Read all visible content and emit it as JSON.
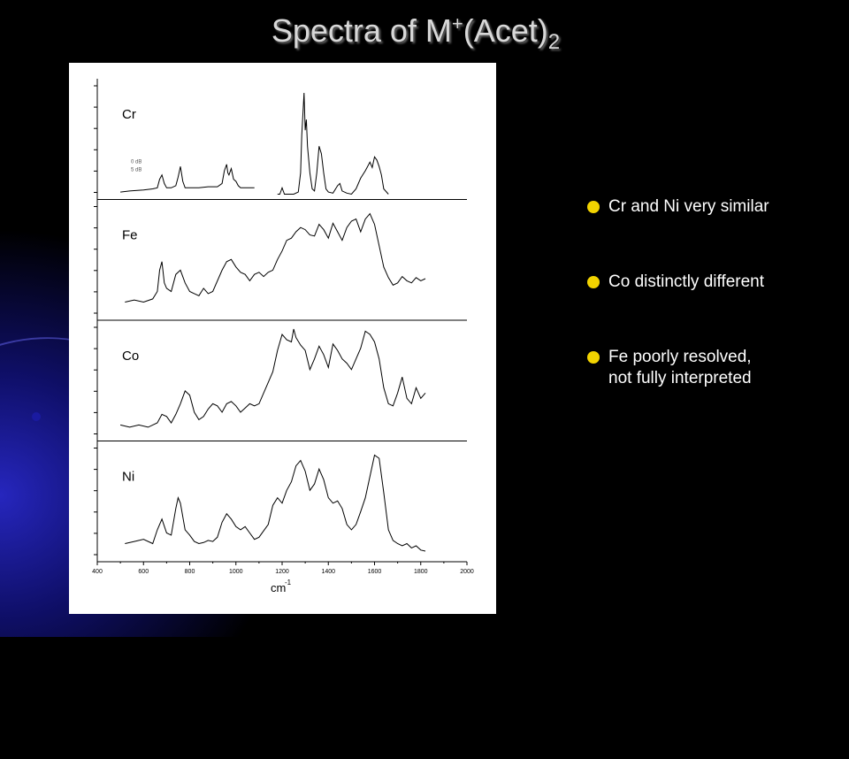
{
  "slide": {
    "title_main": "Spectra of M",
    "title_sup": "+",
    "title_paren": "(Acet)",
    "title_sub": "2",
    "bullets": [
      {
        "text": "Cr and Ni very similar"
      },
      {
        "text": "Co distinctly different"
      },
      {
        "text": "Fe poorly resolved,\nnot fully interpreted"
      }
    ],
    "colors": {
      "background": "#000000",
      "glow": "#2828c8",
      "bullet": "#f2d300",
      "title": "#d8d8d8"
    }
  },
  "chart_data": {
    "type": "line",
    "xlabel": "cm",
    "xlabel_sup": "-1",
    "ylabel": "",
    "xlim": [
      400,
      2000
    ],
    "xticks": [
      400,
      600,
      800,
      1000,
      1200,
      1400,
      1600,
      1800,
      2000
    ],
    "grid": false,
    "legend": "none",
    "panels": [
      {
        "name": "Cr",
        "annotations": [
          "0 dB",
          "5 dB"
        ],
        "series": [
          {
            "x": [
              500,
              540,
              600,
              640,
              660,
              670,
              680,
              690,
              700,
              720,
              740,
              750,
              760,
              770,
              780,
              800,
              840,
              880,
              920,
              940,
              950,
              960,
              965,
              970,
              980,
              990,
              1000,
              1010,
              1020,
              1040,
              1060,
              1080
            ],
            "y": [
              0.02,
              0.03,
              0.04,
              0.05,
              0.06,
              0.14,
              0.18,
              0.1,
              0.06,
              0.06,
              0.08,
              0.16,
              0.26,
              0.12,
              0.06,
              0.06,
              0.06,
              0.07,
              0.07,
              0.1,
              0.22,
              0.28,
              0.2,
              0.18,
              0.24,
              0.14,
              0.12,
              0.08,
              0.06,
              0.06,
              0.06,
              0.06
            ]
          },
          {
            "x": [
              1180,
              1190,
              1200,
              1210,
              1230,
              1250,
              1270,
              1280,
              1285,
              1290,
              1295,
              1300,
              1305,
              1310,
              1320,
              1330,
              1340,
              1350,
              1360,
              1370,
              1380,
              1390,
              1400,
              1420,
              1440,
              1450,
              1460,
              1480,
              1500,
              1520,
              1540,
              1560,
              1580,
              1590,
              1600,
              1610,
              1620,
              1630,
              1640,
              1660
            ],
            "y": [
              0.0,
              0.0,
              0.06,
              0.0,
              0.0,
              0.0,
              0.02,
              0.2,
              0.55,
              0.75,
              0.95,
              0.6,
              0.7,
              0.45,
              0.2,
              0.05,
              0.03,
              0.2,
              0.45,
              0.38,
              0.2,
              0.05,
              0.02,
              0.01,
              0.08,
              0.1,
              0.03,
              0.01,
              0.0,
              0.05,
              0.15,
              0.22,
              0.3,
              0.25,
              0.35,
              0.32,
              0.26,
              0.18,
              0.05,
              0.0
            ]
          }
        ]
      },
      {
        "name": "Fe",
        "series": [
          {
            "x": [
              520,
              560,
              600,
              640,
              660,
              670,
              680,
              690,
              700,
              720,
              740,
              760,
              780,
              800,
              820,
              840,
              860,
              880,
              900,
              940,
              960,
              980,
              1000,
              1020,
              1040,
              1060,
              1080,
              1100,
              1120,
              1140,
              1160,
              1180,
              1200,
              1220,
              1240,
              1260,
              1280,
              1300,
              1320,
              1340,
              1360,
              1380,
              1400,
              1420,
              1440,
              1460,
              1480,
              1500,
              1520,
              1540,
              1560,
              1580,
              1600,
              1620,
              1640,
              1660,
              1680,
              1700,
              1720,
              1740,
              1760,
              1780,
              1800,
              1820
            ],
            "y": [
              0.12,
              0.14,
              0.12,
              0.15,
              0.22,
              0.42,
              0.5,
              0.3,
              0.25,
              0.22,
              0.38,
              0.42,
              0.3,
              0.22,
              0.2,
              0.18,
              0.25,
              0.2,
              0.22,
              0.42,
              0.5,
              0.52,
              0.45,
              0.4,
              0.38,
              0.32,
              0.38,
              0.4,
              0.36,
              0.4,
              0.42,
              0.52,
              0.6,
              0.7,
              0.72,
              0.78,
              0.82,
              0.8,
              0.75,
              0.74,
              0.85,
              0.8,
              0.72,
              0.86,
              0.78,
              0.7,
              0.82,
              0.88,
              0.9,
              0.78,
              0.9,
              0.95,
              0.85,
              0.65,
              0.45,
              0.35,
              0.28,
              0.3,
              0.36,
              0.32,
              0.3,
              0.35,
              0.32,
              0.34
            ]
          }
        ]
      },
      {
        "name": "Co",
        "series": [
          {
            "x": [
              500,
              540,
              580,
              620,
              660,
              680,
              700,
              720,
              740,
              760,
              780,
              800,
              820,
              840,
              860,
              880,
              900,
              920,
              940,
              960,
              980,
              1000,
              1020,
              1040,
              1060,
              1080,
              1100,
              1120,
              1140,
              1160,
              1180,
              1200,
              1220,
              1240,
              1250,
              1260,
              1280,
              1300,
              1320,
              1340,
              1360,
              1380,
              1400,
              1420,
              1440,
              1460,
              1480,
              1500,
              1520,
              1540,
              1560,
              1580,
              1600,
              1620,
              1640,
              1660,
              1680,
              1700,
              1720,
              1740,
              1760,
              1780,
              1800,
              1820
            ],
            "y": [
              0.1,
              0.08,
              0.1,
              0.08,
              0.12,
              0.2,
              0.18,
              0.12,
              0.2,
              0.3,
              0.42,
              0.38,
              0.22,
              0.15,
              0.18,
              0.25,
              0.3,
              0.28,
              0.22,
              0.3,
              0.32,
              0.28,
              0.22,
              0.26,
              0.3,
              0.28,
              0.3,
              0.4,
              0.5,
              0.6,
              0.8,
              0.95,
              0.9,
              0.88,
              1.0,
              0.92,
              0.85,
              0.8,
              0.62,
              0.72,
              0.84,
              0.76,
              0.64,
              0.86,
              0.8,
              0.72,
              0.68,
              0.62,
              0.72,
              0.82,
              0.98,
              0.95,
              0.88,
              0.72,
              0.45,
              0.3,
              0.28,
              0.4,
              0.55,
              0.35,
              0.3,
              0.45,
              0.35,
              0.4
            ]
          }
        ]
      },
      {
        "name": "Ni",
        "series": [
          {
            "x": [
              520,
              560,
              600,
              640,
              660,
              680,
              700,
              720,
              740,
              750,
              760,
              780,
              800,
              820,
              840,
              860,
              880,
              900,
              920,
              940,
              960,
              980,
              1000,
              1020,
              1040,
              1060,
              1080,
              1100,
              1120,
              1140,
              1160,
              1180,
              1200,
              1220,
              1240,
              1260,
              1280,
              1300,
              1320,
              1340,
              1360,
              1380,
              1400,
              1420,
              1440,
              1460,
              1480,
              1500,
              1520,
              1540,
              1560,
              1580,
              1600,
              1620,
              1640,
              1660,
              1680,
              1700,
              1720,
              1740,
              1760,
              1780,
              1800,
              1820
            ],
            "y": [
              0.12,
              0.14,
              0.16,
              0.12,
              0.25,
              0.35,
              0.22,
              0.2,
              0.45,
              0.55,
              0.5,
              0.25,
              0.2,
              0.14,
              0.12,
              0.13,
              0.15,
              0.14,
              0.18,
              0.32,
              0.4,
              0.35,
              0.28,
              0.25,
              0.28,
              0.22,
              0.16,
              0.18,
              0.24,
              0.3,
              0.48,
              0.55,
              0.5,
              0.62,
              0.7,
              0.85,
              0.9,
              0.8,
              0.62,
              0.68,
              0.82,
              0.72,
              0.55,
              0.5,
              0.52,
              0.45,
              0.3,
              0.25,
              0.3,
              0.42,
              0.55,
              0.75,
              0.95,
              0.92,
              0.6,
              0.25,
              0.15,
              0.12,
              0.1,
              0.12,
              0.08,
              0.1,
              0.06,
              0.05
            ]
          }
        ]
      }
    ]
  }
}
